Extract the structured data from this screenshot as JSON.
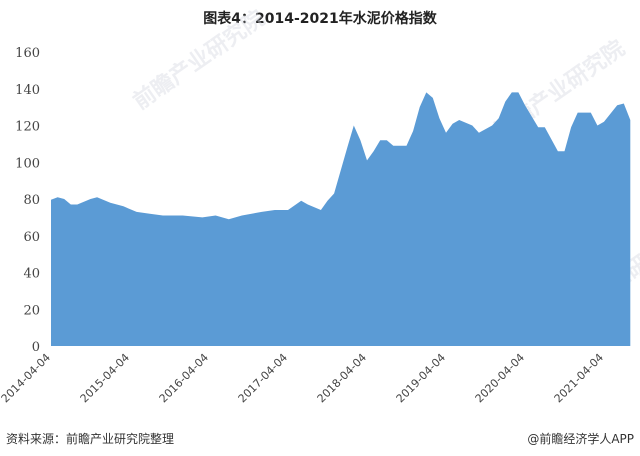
{
  "title": "图表4：2014-2021年水泥价格指数",
  "source": "资料来源：前瞻产业研究院整理",
  "credit": "@前瞻经济学人APP",
  "watermark": "前瞻产业研究院",
  "chart_data": {
    "type": "area",
    "title": "图表4：2014-2021年水泥价格指数",
    "xlabel": "",
    "ylabel": "",
    "ylim": [
      0,
      160
    ],
    "yticks": [
      0,
      20,
      40,
      60,
      80,
      100,
      120,
      140,
      160
    ],
    "xticks": [
      "2014-04-04",
      "2015-04-04",
      "2016-04-04",
      "2017-04-04",
      "2018-04-04",
      "2019-04-04",
      "2020-04-04",
      "2021-04-04"
    ],
    "grid": false,
    "color": "#5b9bd5",
    "series": [
      {
        "x": [
          "2014-04",
          "2014-05",
          "2014-06",
          "2014-07",
          "2014-08",
          "2014-10",
          "2014-11",
          "2015-01",
          "2015-03",
          "2015-05",
          "2015-07",
          "2015-09",
          "2015-12",
          "2016-03",
          "2016-05",
          "2016-07",
          "2016-09",
          "2016-12",
          "2017-02",
          "2017-04",
          "2017-06",
          "2017-07",
          "2017-09",
          "2017-10",
          "2017-11",
          "2018-01",
          "2018-02",
          "2018-03",
          "2018-04",
          "2018-05",
          "2018-06",
          "2018-07",
          "2018-08",
          "2018-10",
          "2018-11",
          "2018-12",
          "2019-01",
          "2019-02",
          "2019-03",
          "2019-04",
          "2019-05",
          "2019-06",
          "2019-08",
          "2019-09",
          "2019-11",
          "2019-12",
          "2020-01",
          "2020-02",
          "2020-03",
          "2020-04",
          "2020-06",
          "2020-07",
          "2020-09",
          "2020-10",
          "2020-11",
          "2020-12",
          "2021-02",
          "2021-03",
          "2021-04",
          "2021-06",
          "2021-07",
          "2021-08"
        ],
        "values": [
          79.6,
          81,
          80,
          77,
          77,
          80,
          81,
          78,
          76,
          73,
          72,
          71,
          71,
          70,
          71,
          69,
          71,
          73,
          74,
          74,
          79,
          77,
          74,
          79,
          83,
          108,
          120,
          112,
          101,
          106,
          112,
          112,
          109,
          109,
          117,
          130,
          138,
          135,
          124,
          116,
          121,
          123,
          120,
          116,
          120,
          124,
          133,
          138,
          138,
          131,
          119,
          119,
          106,
          106,
          119,
          127,
          127,
          120,
          122,
          131,
          132,
          123
        ]
      }
    ]
  }
}
